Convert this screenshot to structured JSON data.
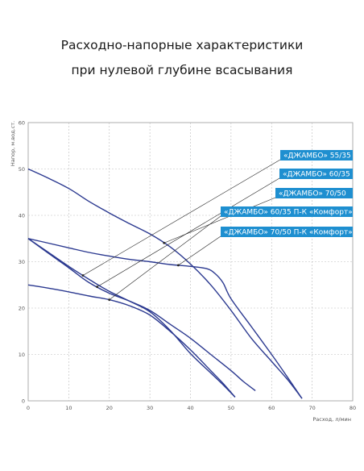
{
  "header": {
    "title_line1": "Расходно-напорные характеристики",
    "title_line2": "при нулевой глубине всасывания"
  },
  "colors": {
    "curve": "#2b3990",
    "grid": "#bbbbbb",
    "label_bg": "#1e8fd0",
    "leader": "#222222"
  },
  "chart_data": {
    "type": "line",
    "xlabel": "Расход, л/мин",
    "ylabel": "Напор, м.вод.ст.",
    "xlim": [
      0,
      80
    ],
    "ylim": [
      0,
      60
    ],
    "x_ticks": [
      0,
      10,
      20,
      30,
      40,
      50,
      60,
      70,
      80
    ],
    "y_ticks": [
      0,
      10,
      20,
      30,
      40,
      50,
      60
    ],
    "grid": "dashed",
    "series": [
      {
        "name": "«ДЖАМБО» 55/35",
        "points": [
          [
            0,
            35
          ],
          [
            5,
            32
          ],
          [
            10,
            29
          ],
          [
            15,
            26.2
          ],
          [
            20,
            23.6
          ],
          [
            25,
            21.5
          ],
          [
            30,
            19.2
          ],
          [
            35,
            15.2
          ],
          [
            40,
            10.2
          ],
          [
            45,
            6
          ],
          [
            48,
            3.5
          ],
          [
            51,
            0.8
          ]
        ]
      },
      {
        "name": "«ДЖАМБО» 60/35",
        "points": [
          [
            0,
            35
          ],
          [
            5,
            31.8
          ],
          [
            10,
            28.7
          ],
          [
            15,
            25.5
          ],
          [
            20,
            23.2
          ],
          [
            25,
            21.5
          ],
          [
            30,
            19.5
          ],
          [
            35,
            16.5
          ],
          [
            40,
            13.5
          ],
          [
            45,
            10
          ],
          [
            50,
            6.5
          ],
          [
            53,
            4.2
          ],
          [
            56,
            2.2
          ]
        ]
      },
      {
        "name": "«ДЖАМБО» 70/50",
        "points": [
          [
            0,
            50
          ],
          [
            5,
            48
          ],
          [
            10,
            45.8
          ],
          [
            15,
            43
          ],
          [
            20,
            40.5
          ],
          [
            25,
            38.2
          ],
          [
            30,
            36
          ],
          [
            35,
            33.2
          ],
          [
            40,
            29.5
          ],
          [
            45,
            25
          ],
          [
            50,
            19.5
          ],
          [
            55,
            13.5
          ],
          [
            60,
            8.5
          ],
          [
            64,
            4.5
          ],
          [
            67.5,
            0.5
          ]
        ]
      },
      {
        "name": "«ДЖАМБО» 60/35 П-К «Комфорт»",
        "points": [
          [
            0,
            25
          ],
          [
            5,
            24.3
          ],
          [
            10,
            23.5
          ],
          [
            15,
            22.6
          ],
          [
            20,
            21.8
          ],
          [
            25,
            20.5
          ],
          [
            30,
            18.5
          ],
          [
            35,
            15
          ],
          [
            40,
            11
          ],
          [
            45,
            6.5
          ],
          [
            48,
            3.8
          ],
          [
            51,
            0.8
          ]
        ]
      },
      {
        "name": "«ДЖАМБО» 70/50 П-К «Комфорт»",
        "points": [
          [
            0,
            35
          ],
          [
            5,
            34
          ],
          [
            10,
            33
          ],
          [
            15,
            32
          ],
          [
            20,
            31.2
          ],
          [
            25,
            30.5
          ],
          [
            30,
            30
          ],
          [
            35,
            29.4
          ],
          [
            40,
            29
          ],
          [
            44,
            28.5
          ],
          [
            46,
            27.5
          ],
          [
            48,
            25.5
          ],
          [
            50,
            22
          ],
          [
            55,
            16
          ],
          [
            60,
            10
          ],
          [
            64,
            5
          ],
          [
            67.5,
            0.5
          ]
        ]
      }
    ]
  }
}
